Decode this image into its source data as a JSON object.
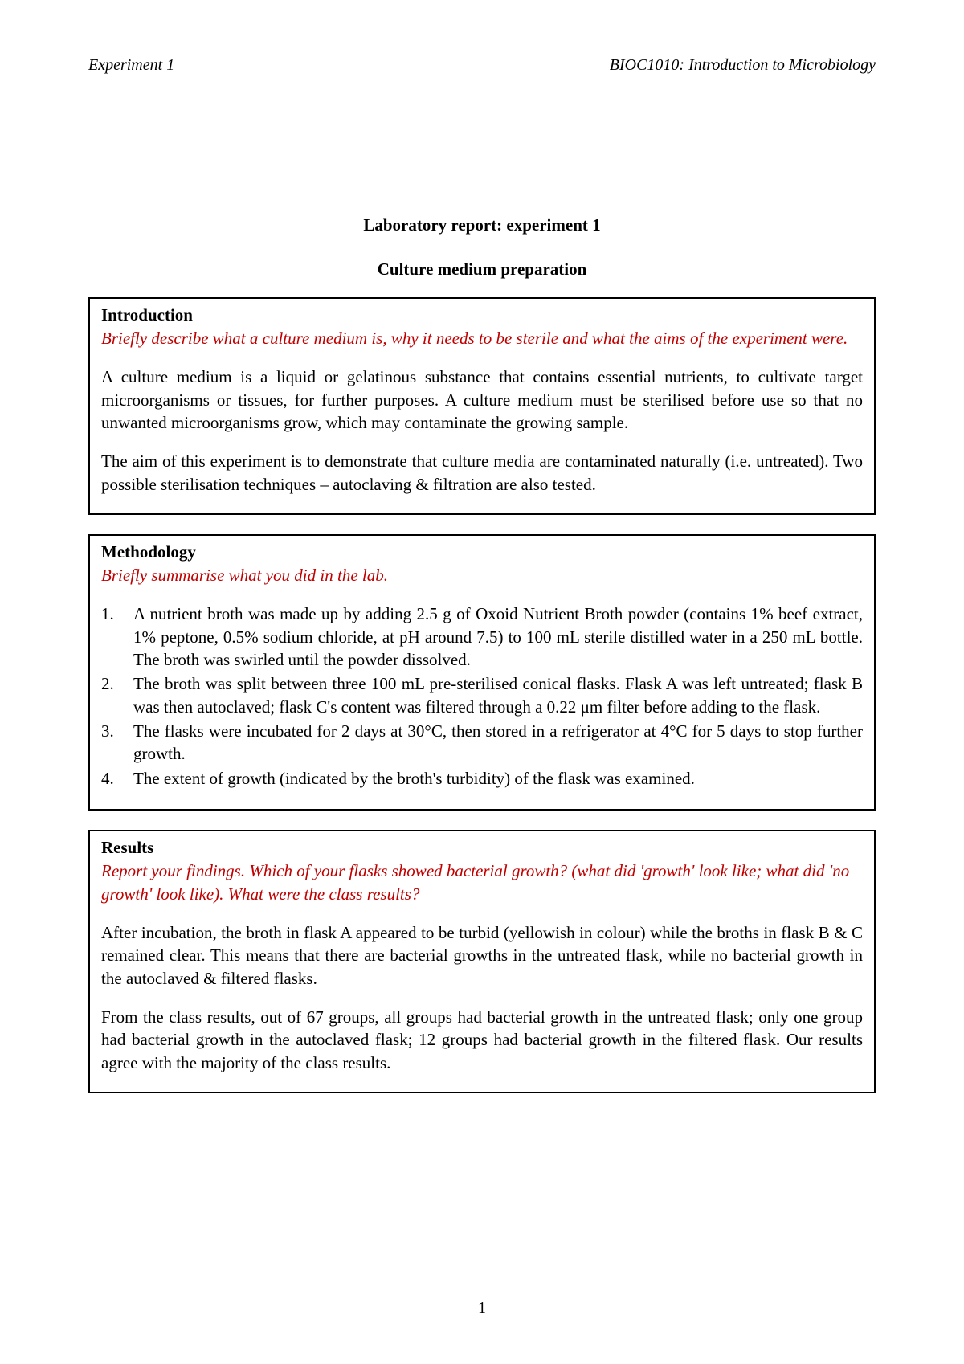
{
  "header": {
    "left": "Experiment 1",
    "right": "BIOC1010: Introduction to Microbiology"
  },
  "title_line1": "Laboratory report: experiment 1",
  "title_line2": "Culture medium preparation",
  "introduction": {
    "heading": "Introduction",
    "prompt": "Briefly describe what a culture medium is, why it needs to be sterile and what the aims of the experiment were.",
    "p1": "A culture medium is a liquid or gelatinous substance that contains essential nutrients, to cultivate target microorganisms or tissues, for further purposes. A culture medium must be sterilised before use so that no unwanted microorganisms grow, which may contaminate the growing sample.",
    "p2": "The aim of this experiment is to demonstrate that culture media are contaminated naturally (i.e. untreated). Two possible sterilisation techniques – autoclaving & filtration are also tested."
  },
  "methodology": {
    "heading": "Methodology",
    "prompt": "Briefly summarise what you did in the lab.",
    "steps": [
      "A nutrient broth was made up by adding 2.5 g of Oxoid Nutrient Broth powder (contains 1% beef extract, 1% peptone, 0.5% sodium chloride, at pH around 7.5) to 100 mL sterile distilled water in a 250 mL bottle. The broth was swirled until the powder dissolved.",
      "The broth was split between three 100 mL pre-sterilised conical flasks. Flask A was left untreated; flask B was then autoclaved; flask C's content was filtered through a 0.22 μm filter before adding to the flask.",
      "The flasks were incubated for 2 days at 30°C, then stored in a refrigerator at 4°C for 5 days to stop further growth.",
      "The extent of growth (indicated by the broth's turbidity) of the flask was examined."
    ]
  },
  "results": {
    "heading": "Results",
    "prompt": "Report your findings. Which of your flasks showed bacterial growth? (what did 'growth' look like; what did 'no growth' look like). What were the class results?",
    "p1": "After incubation, the broth in flask A appeared to be turbid (yellowish in colour) while the broths in flask B & C remained clear. This means that there are bacterial growths in the untreated flask, while no bacterial growth in the autoclaved & filtered flasks.",
    "p2": "From the class results, out of 67 groups, all groups had bacterial growth in the untreated flask; only one group had bacterial growth in the autoclaved flask; 12 groups had bacterial growth in the filtered flask. Our results agree with the majority of the class results."
  },
  "page_number": "1",
  "colors": {
    "prompt_text": "#c00000",
    "body_text": "#000000",
    "background": "#ffffff",
    "border": "#000000"
  }
}
